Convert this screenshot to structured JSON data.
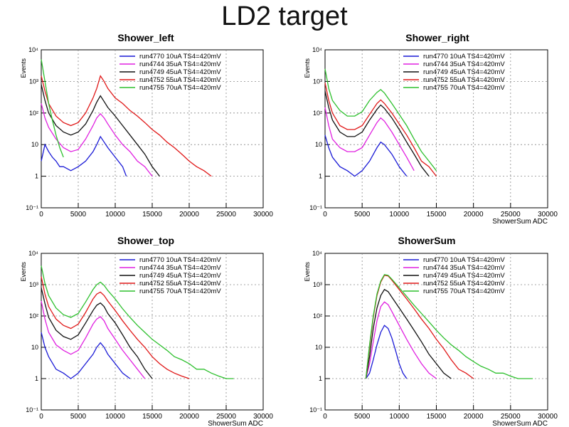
{
  "slide_title": "LD2 target",
  "chart_data": [
    {
      "type": "line",
      "title": "Shower_left",
      "xlabel": "",
      "ylabel": "Events",
      "xlim": [
        0,
        30000
      ],
      "ylim": [
        0.1,
        10000
      ],
      "yscale": "log",
      "xticks": [
        "0",
        "5000",
        "10000",
        "15000",
        "20000",
        "25000",
        "30000"
      ],
      "yticks": [
        "10⁻¹",
        "1",
        "10",
        "10²",
        "10³",
        "10⁴"
      ],
      "grid": true,
      "legend_position": "top-right",
      "series": [
        {
          "name": "run4770 10uA TS4=420mV",
          "color": "#1a1ad6",
          "x": [
            0,
            500,
            1000,
            1500,
            2000,
            2500,
            3000,
            4000,
            5000,
            6000,
            7000,
            7500,
            8000,
            8500,
            9000,
            10000,
            11000,
            11500
          ],
          "y": [
            3,
            10,
            6,
            4,
            3,
            2,
            2,
            1.5,
            2,
            3,
            6,
            10,
            18,
            12,
            8,
            4,
            2,
            1
          ]
        },
        {
          "name": "run4744 35uA TS4=420mV",
          "color": "#e020e0",
          "x": [
            0,
            500,
            1000,
            2000,
            3000,
            4000,
            5000,
            6000,
            7000,
            7500,
            8000,
            8500,
            9000,
            10000,
            11000,
            12000,
            13000,
            14000,
            15000
          ],
          "y": [
            200,
            70,
            35,
            15,
            8,
            6,
            7,
            15,
            40,
            70,
            95,
            70,
            45,
            20,
            10,
            6,
            3,
            2,
            1
          ]
        },
        {
          "name": "run4749 45uA TS4=420mV",
          "color": "#111111",
          "x": [
            0,
            500,
            1000,
            2000,
            3000,
            4000,
            5000,
            6000,
            7000,
            7500,
            8000,
            8500,
            9000,
            10000,
            11000,
            12000,
            13000,
            14000,
            15000,
            16000
          ],
          "y": [
            800,
            250,
            100,
            40,
            25,
            20,
            25,
            45,
            120,
            220,
            350,
            230,
            150,
            80,
            40,
            20,
            10,
            5,
            2,
            1
          ]
        },
        {
          "name": "run4752 55uA TS4=420mV",
          "color": "#e01818",
          "x": [
            0,
            500,
            1000,
            2000,
            3000,
            4000,
            5000,
            6000,
            7000,
            7500,
            8000,
            8500,
            9000,
            10000,
            11000,
            12000,
            13000,
            14000,
            15000,
            16000,
            17000,
            18000,
            19000,
            20000,
            21000,
            22000,
            23000
          ],
          "y": [
            1500,
            500,
            200,
            80,
            50,
            40,
            50,
            100,
            300,
            600,
            1500,
            1000,
            600,
            300,
            200,
            120,
            80,
            50,
            30,
            20,
            12,
            8,
            5,
            3,
            2,
            1.5,
            1
          ]
        },
        {
          "name": "run4755 70uA TS4=420mV",
          "color": "#2ec02e",
          "x": [
            0,
            500,
            1000,
            1500,
            2000,
            2500,
            3000
          ],
          "y": [
            5000,
            1000,
            200,
            60,
            20,
            8,
            4
          ]
        }
      ]
    },
    {
      "type": "line",
      "title": "Shower_right",
      "xlabel": "ShowerSum ADC",
      "ylabel": "Events",
      "xlim": [
        0,
        30000
      ],
      "ylim": [
        0.1,
        10000
      ],
      "yscale": "log",
      "xticks": [
        "0",
        "5000",
        "10000",
        "15000",
        "20000",
        "25000",
        "30000"
      ],
      "yticks": [
        "10⁻¹",
        "1",
        "10",
        "10²",
        "10³",
        "10⁴"
      ],
      "grid": true,
      "legend_position": "top-right",
      "series": [
        {
          "name": "run4770 10uA TS4=420mV",
          "color": "#1a1ad6",
          "x": [
            0,
            500,
            1000,
            2000,
            3000,
            4000,
            5000,
            6000,
            7000,
            7500,
            8000,
            9000,
            10000,
            11000
          ],
          "y": [
            20,
            8,
            4,
            2,
            1.5,
            1,
            1.5,
            3,
            8,
            12,
            10,
            5,
            2,
            1
          ]
        },
        {
          "name": "run4744 35uA TS4=420mV",
          "color": "#e020e0",
          "x": [
            0,
            500,
            1000,
            2000,
            3000,
            4000,
            5000,
            6000,
            7000,
            7500,
            8000,
            9000,
            10000,
            11000,
            12000
          ],
          "y": [
            150,
            40,
            15,
            8,
            6,
            6,
            8,
            20,
            50,
            70,
            55,
            25,
            10,
            4,
            1.5
          ]
        },
        {
          "name": "run4749 45uA TS4=420mV",
          "color": "#111111",
          "x": [
            0,
            500,
            1000,
            2000,
            3000,
            4000,
            5000,
            6000,
            7000,
            7500,
            8000,
            9000,
            10000,
            11000,
            12000,
            13000,
            14000
          ],
          "y": [
            500,
            150,
            60,
            25,
            18,
            18,
            25,
            60,
            130,
            180,
            140,
            70,
            30,
            12,
            5,
            2,
            1
          ]
        },
        {
          "name": "run4752 55uA TS4=420mV",
          "color": "#e01818",
          "x": [
            0,
            500,
            1000,
            2000,
            3000,
            4000,
            5000,
            6000,
            7000,
            7500,
            8000,
            9000,
            10000,
            11000,
            12000,
            13000,
            14000,
            15000
          ],
          "y": [
            900,
            250,
            100,
            40,
            30,
            30,
            40,
            90,
            200,
            260,
            200,
            100,
            45,
            20,
            8,
            3,
            2,
            1
          ]
        },
        {
          "name": "run4755 70uA TS4=420mV",
          "color": "#2ec02e",
          "x": [
            0,
            500,
            1000,
            2000,
            3000,
            4000,
            5000,
            6000,
            7000,
            7500,
            8000,
            9000,
            10000,
            11000,
            12000,
            13000,
            14000,
            15000
          ],
          "y": [
            2500,
            600,
            250,
            120,
            80,
            80,
            110,
            250,
            450,
            550,
            430,
            200,
            90,
            40,
            15,
            6,
            3,
            1.5
          ]
        }
      ]
    },
    {
      "type": "line",
      "title": "Shower_top",
      "xlabel": "ShowerSum ADC",
      "ylabel": "Events",
      "xlim": [
        0,
        30000
      ],
      "ylim": [
        0.1,
        10000
      ],
      "yscale": "log",
      "xticks": [
        "0",
        "5000",
        "10000",
        "15000",
        "20000",
        "25000",
        "30000"
      ],
      "yticks": [
        "10⁻¹",
        "1",
        "10",
        "10²",
        "10³",
        "10⁴"
      ],
      "grid": true,
      "legend_position": "top-right",
      "series": [
        {
          "name": "run4770 10uA TS4=420mV",
          "color": "#1a1ad6",
          "x": [
            0,
            500,
            1000,
            2000,
            3000,
            4000,
            5000,
            6000,
            7000,
            7500,
            8000,
            8500,
            9000,
            10000,
            11000,
            12000
          ],
          "y": [
            30,
            10,
            5,
            2,
            1.5,
            1,
            1.5,
            3,
            6,
            10,
            14,
            10,
            6,
            3,
            1.5,
            1
          ]
        },
        {
          "name": "run4744 35uA TS4=420mV",
          "color": "#e020e0",
          "x": [
            0,
            500,
            1000,
            2000,
            3000,
            4000,
            5000,
            6000,
            7000,
            7500,
            8000,
            8500,
            9000,
            10000,
            11000,
            12000,
            13000,
            14000
          ],
          "y": [
            300,
            80,
            30,
            12,
            8,
            6,
            8,
            20,
            55,
            80,
            95,
            70,
            40,
            18,
            8,
            4,
            2,
            1
          ]
        },
        {
          "name": "run4749 45uA TS4=420mV",
          "color": "#111111",
          "x": [
            0,
            500,
            1000,
            2000,
            3000,
            4000,
            5000,
            6000,
            7000,
            7500,
            8000,
            8500,
            9000,
            10000,
            11000,
            12000,
            13000,
            14000,
            15000
          ],
          "y": [
            800,
            250,
            90,
            35,
            22,
            18,
            25,
            60,
            150,
            220,
            260,
            200,
            120,
            60,
            25,
            10,
            5,
            2,
            1
          ]
        },
        {
          "name": "run4752 55uA TS4=420mV",
          "color": "#e01818",
          "x": [
            0,
            500,
            1000,
            2000,
            3000,
            4000,
            5000,
            6000,
            7000,
            7500,
            8000,
            8500,
            9000,
            10000,
            11000,
            12000,
            13000,
            14000,
            15000,
            16000,
            17000,
            18000,
            19000,
            20000
          ],
          "y": [
            1800,
            500,
            200,
            80,
            50,
            40,
            55,
            130,
            350,
            500,
            580,
            450,
            300,
            150,
            70,
            35,
            18,
            10,
            5,
            3,
            2,
            1.5,
            1.2,
            1
          ]
        },
        {
          "name": "run4755 70uA TS4=420mV",
          "color": "#2ec02e",
          "x": [
            0,
            500,
            1000,
            2000,
            3000,
            4000,
            5000,
            6000,
            7000,
            7500,
            8000,
            8500,
            9000,
            10000,
            11000,
            12000,
            13000,
            14000,
            15000,
            16000,
            17000,
            18000,
            19000,
            20000,
            21000,
            22000,
            23000,
            24000,
            25000,
            26000
          ],
          "y": [
            4000,
            1100,
            450,
            180,
            110,
            90,
            120,
            280,
            700,
            1000,
            1200,
            950,
            650,
            350,
            170,
            90,
            50,
            30,
            18,
            12,
            8,
            5,
            4,
            3,
            2,
            2,
            1.5,
            1.2,
            1,
            1
          ]
        }
      ]
    },
    {
      "type": "line",
      "title": "ShowerSum",
      "xlabel": "ShowerSum ADC",
      "ylabel": "Events",
      "xlim": [
        0,
        30000
      ],
      "ylim": [
        0.1,
        10000
      ],
      "yscale": "log",
      "xticks": [
        "0",
        "5000",
        "10000",
        "15000",
        "20000",
        "25000",
        "30000"
      ],
      "yticks": [
        "10⁻¹",
        "1",
        "10",
        "10²",
        "10³",
        "10⁴"
      ],
      "grid": true,
      "legend_position": "top-right",
      "series": [
        {
          "name": "run4770 10uA TS4=420mV",
          "color": "#1a1ad6",
          "x": [
            5500,
            6000,
            6500,
            7000,
            7500,
            8000,
            8500,
            9000,
            9500,
            10000,
            10500,
            11000
          ],
          "y": [
            1,
            1.5,
            4,
            12,
            30,
            50,
            40,
            20,
            8,
            3,
            1.5,
            1
          ]
        },
        {
          "name": "run4744 35uA TS4=420mV",
          "color": "#e020e0",
          "x": [
            5500,
            6000,
            6500,
            7000,
            7500,
            8000,
            8500,
            9000,
            10000,
            11000,
            12000,
            13000,
            14000,
            15000
          ],
          "y": [
            1,
            3,
            15,
            70,
            200,
            280,
            230,
            140,
            50,
            18,
            7,
            3,
            1.5,
            1
          ]
        },
        {
          "name": "run4749 45uA TS4=420mV",
          "color": "#111111",
          "x": [
            5500,
            6000,
            6500,
            7000,
            7500,
            8000,
            8500,
            9000,
            10000,
            11000,
            12000,
            13000,
            14000,
            15000,
            16000,
            17000
          ],
          "y": [
            1,
            5,
            40,
            180,
            450,
            700,
            600,
            400,
            180,
            80,
            35,
            15,
            6,
            3,
            1.5,
            1
          ]
        },
        {
          "name": "run4752 55uA TS4=420mV",
          "color": "#e01818",
          "x": [
            5500,
            6000,
            6500,
            7000,
            7500,
            8000,
            8500,
            9000,
            10000,
            11000,
            12000,
            13000,
            14000,
            15000,
            16000,
            17000,
            18000,
            19000,
            20000
          ],
          "y": [
            1,
            10,
            90,
            450,
            1200,
            2000,
            1900,
            1400,
            700,
            350,
            170,
            80,
            40,
            18,
            9,
            4,
            2,
            1.5,
            1
          ]
        },
        {
          "name": "run4755 70uA TS4=420mV",
          "color": "#2ec02e",
          "x": [
            5500,
            6000,
            6500,
            7000,
            7500,
            8000,
            8500,
            9000,
            10000,
            11000,
            12000,
            13000,
            14000,
            15000,
            16000,
            17000,
            18000,
            19000,
            20000,
            21000,
            22000,
            23000,
            24000,
            25000,
            26000,
            27000,
            28000
          ],
          "y": [
            1,
            12,
            100,
            500,
            1300,
            2100,
            2000,
            1500,
            800,
            420,
            220,
            120,
            65,
            35,
            20,
            12,
            8,
            5,
            3.5,
            2.5,
            2,
            1.5,
            1.5,
            1.2,
            1,
            1,
            1
          ]
        }
      ]
    }
  ]
}
